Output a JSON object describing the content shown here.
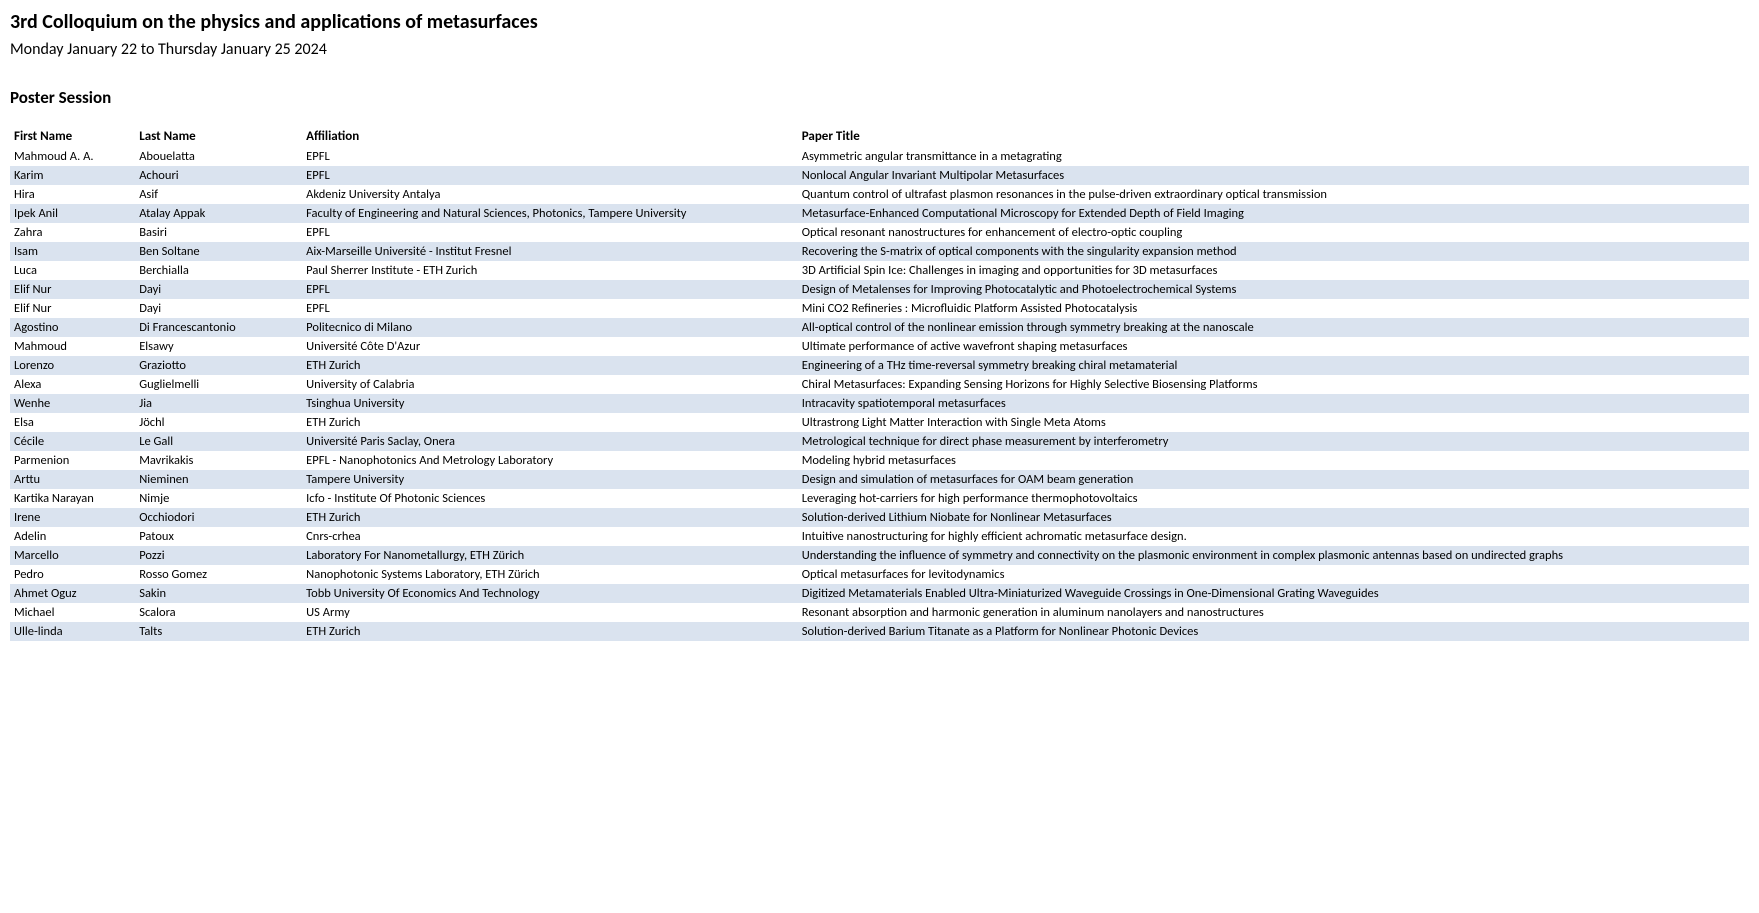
{
  "header": {
    "title": "3rd Colloquium on the physics and applications of metasurfaces",
    "subtitle": "Monday January 22 to Thursday January 25 2024",
    "section": "Poster Session"
  },
  "table": {
    "columns": [
      "First Name",
      "Last Name",
      "Affiliation",
      "Paper Title"
    ],
    "rows": [
      [
        "Mahmoud A. A.",
        "Abouelatta",
        "EPFL",
        "Asymmetric angular transmittance in a metagrating"
      ],
      [
        "Karim",
        "Achouri",
        "EPFL",
        "Nonlocal Angular Invariant Multipolar Metasurfaces"
      ],
      [
        "Hira",
        "Asif",
        "Akdeniz University Antalya",
        "Quantum control of ultrafast plasmon resonances in the pulse-driven extraordinary optical transmission"
      ],
      [
        "Ipek Anil",
        "Atalay Appak",
        "Faculty of Engineering and Natural Sciences, Photonics, Tampere University",
        "Metasurface-Enhanced Computational Microscopy for Extended Depth of Field Imaging"
      ],
      [
        "Zahra",
        "Basiri",
        "EPFL",
        "Optical resonant nanostructures for enhancement of electro-optic coupling"
      ],
      [
        "Isam",
        "Ben Soltane",
        "Aix-Marseille Université - Institut Fresnel",
        "Recovering the S-matrix of optical components with the singularity expansion method"
      ],
      [
        "Luca",
        "Berchialla",
        "Paul Sherrer Institute - ETH Zurich",
        "3D Artificial Spin Ice: Challenges in imaging and opportunities for 3D metasurfaces"
      ],
      [
        "Elif Nur",
        "Dayi",
        "EPFL",
        "Design of Metalenses for Improving Photocatalytic and Photoelectrochemical Systems"
      ],
      [
        "Elif Nur",
        "Dayi",
        "EPFL",
        "Mini CO2 Refineries :  Microfluidic Platform Assisted Photocatalysis"
      ],
      [
        "Agostino",
        "Di Francescantonio",
        "Politecnico di Milano",
        "All-optical control of the nonlinear emission through symmetry breaking at the nanoscale"
      ],
      [
        "Mahmoud",
        "Elsawy",
        "Université Côte D'Azur",
        "Ultimate performance of active wavefront shaping metasurfaces"
      ],
      [
        "Lorenzo",
        "Graziotto",
        "ETH Zurich",
        "Engineering of a THz time-reversal symmetry breaking chiral metamaterial"
      ],
      [
        "Alexa",
        "Guglielmelli",
        "University of Calabria",
        "Chiral Metasurfaces: Expanding Sensing Horizons for Highly Selective Biosensing Platforms"
      ],
      [
        "Wenhe",
        "Jia",
        "Tsinghua University",
        "Intracavity spatiotemporal metasurfaces"
      ],
      [
        "Elsa",
        "Jöchl",
        "ETH Zurich",
        "Ultrastrong Light Matter Interaction with Single Meta Atoms"
      ],
      [
        "Cécile",
        "Le Gall",
        "Université Paris Saclay, Onera",
        "Metrological technique for direct phase measurement by interferometry"
      ],
      [
        "Parmenion",
        "Mavrikakis",
        "EPFL - Nanophotonics And Metrology Laboratory",
        "Modeling hybrid metasurfaces"
      ],
      [
        "Arttu",
        "Nieminen",
        "Tampere University",
        "Design and simulation of metasurfaces for OAM beam generation"
      ],
      [
        "Kartika Narayan",
        "Nimje",
        "Icfo - Institute Of Photonic Sciences",
        "Leveraging hot-carriers for high performance thermophotovoltaics"
      ],
      [
        "Irene",
        "Occhiodori",
        "ETH Zurich",
        "Solution-derived Lithium Niobate for Nonlinear Metasurfaces"
      ],
      [
        "Adelin",
        "Patoux",
        "Cnrs-crhea",
        "Intuitive nanostructuring for highly efficient achromatic metasurface design."
      ],
      [
        "Marcello",
        "Pozzi",
        "Laboratory For Nanometallurgy, ETH Zürich",
        "Understanding the influence of symmetry and connectivity on the plasmonic environment in complex plasmonic antennas based on undirected graphs"
      ],
      [
        "Pedro",
        "Rosso Gomez",
        "Nanophotonic Systems Laboratory, ETH Zürich",
        "Optical metasurfaces for levitodynamics"
      ],
      [
        "Ahmet Oguz",
        "Sakin",
        "Tobb University Of Economics And Technology",
        "Digitized Metamaterials Enabled Ultra-Miniaturized Waveguide Crossings in One-Dimensional Grating Waveguides"
      ],
      [
        "Michael",
        "Scalora",
        "US Army",
        "Resonant absorption and harmonic generation in aluminum nanolayers and nanostructures"
      ],
      [
        "Ulle-linda",
        "Talts",
        "ETH Zurich",
        "Solution-derived Barium Titanate as a Platform for Nonlinear Photonic Devices"
      ]
    ],
    "even_row_bg": "#dae3ef"
  }
}
